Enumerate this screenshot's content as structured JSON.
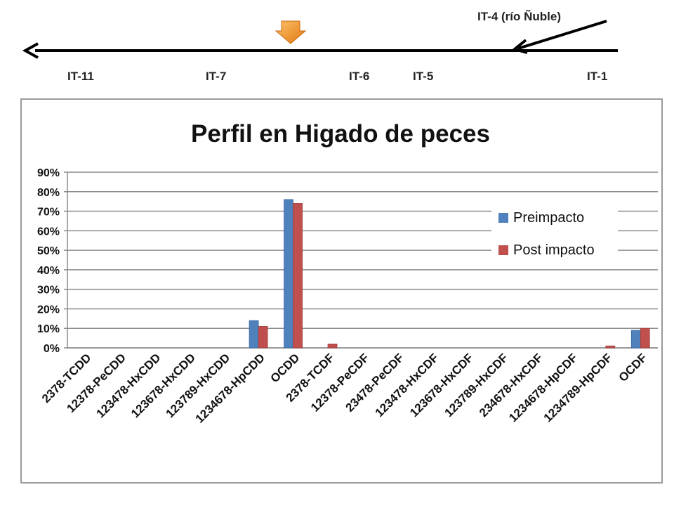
{
  "river": {
    "sites": [
      "IT-11",
      "IT-7",
      "IT-6",
      "IT-5",
      "IT-1"
    ],
    "tributary": "IT-4 (río Ñuble)"
  },
  "colors": {
    "preimpacto": "#4f81bd",
    "post_impacto": "#c0504d",
    "marker": "#f7941d"
  },
  "chart_data": {
    "type": "bar",
    "title": "Perfil en Higado de peces",
    "xlabel": "",
    "ylabel": "",
    "ylim": [
      0,
      90
    ],
    "yticks": [
      "0%",
      "10%",
      "20%",
      "30%",
      "40%",
      "50%",
      "60%",
      "70%",
      "80%",
      "90%"
    ],
    "grid": true,
    "legend_position": "right",
    "categories": [
      "2378-TCDD",
      "12378-PeCDD",
      "123478-HxCDD",
      "123678-HxCDD",
      "123789-HxCDD",
      "1234678-HpCDD",
      "OCDD",
      "2378-TCDF",
      "12378-PeCDF",
      "23478-PeCDF",
      "123478-HxCDF",
      "123678-HxCDF",
      "123789-HxCDF",
      "234678-HxCDF",
      "1234678-HpCDF",
      "1234789-HpCDF",
      "OCDF"
    ],
    "series": [
      {
        "name": "Preimpacto",
        "values": [
          0,
          0,
          0,
          0,
          0,
          14,
          76,
          0,
          0,
          0,
          0,
          0,
          0,
          0,
          0,
          0,
          9
        ]
      },
      {
        "name": "Post impacto",
        "values": [
          0,
          0,
          0,
          0,
          0,
          11,
          74,
          2,
          0,
          0,
          0,
          0,
          0,
          0,
          0,
          1,
          10
        ]
      }
    ]
  }
}
